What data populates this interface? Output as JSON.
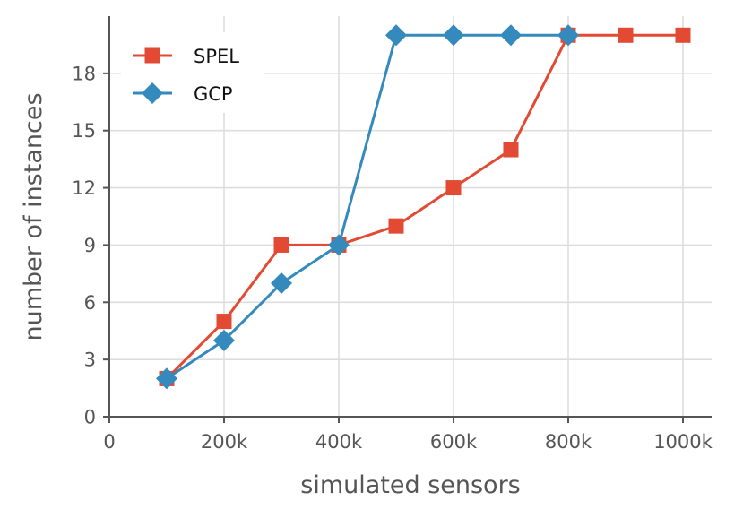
{
  "chart_data": {
    "type": "line",
    "xlabel": "simulated sensors",
    "ylabel": "number of instances",
    "xlim": [
      0,
      1050000
    ],
    "ylim": [
      0,
      21
    ],
    "x_ticks": [
      {
        "value": 0,
        "label": "0"
      },
      {
        "value": 200000,
        "label": "200k"
      },
      {
        "value": 400000,
        "label": "400k"
      },
      {
        "value": 600000,
        "label": "600k"
      },
      {
        "value": 800000,
        "label": "800k"
      },
      {
        "value": 1000000,
        "label": "1000k"
      }
    ],
    "y_ticks": [
      {
        "value": 0,
        "label": "0"
      },
      {
        "value": 3,
        "label": "3"
      },
      {
        "value": 6,
        "label": "6"
      },
      {
        "value": 9,
        "label": "9"
      },
      {
        "value": 12,
        "label": "12"
      },
      {
        "value": 15,
        "label": "15"
      },
      {
        "value": 18,
        "label": "18"
      }
    ],
    "grid": true,
    "legend_position": "top-left",
    "series": [
      {
        "name": "SPEL",
        "color": "#e24a33",
        "marker": "square",
        "x": [
          100000,
          200000,
          300000,
          400000,
          500000,
          600000,
          700000,
          800000,
          900000,
          1000000
        ],
        "y": [
          2,
          5,
          9,
          9,
          10,
          12,
          14,
          20,
          20,
          20
        ]
      },
      {
        "name": "GCP",
        "color": "#348abd",
        "marker": "diamond",
        "x": [
          100000,
          200000,
          300000,
          400000,
          500000,
          600000,
          700000,
          800000
        ],
        "y": [
          2,
          4,
          7,
          9,
          20,
          20,
          20,
          20
        ]
      }
    ]
  }
}
